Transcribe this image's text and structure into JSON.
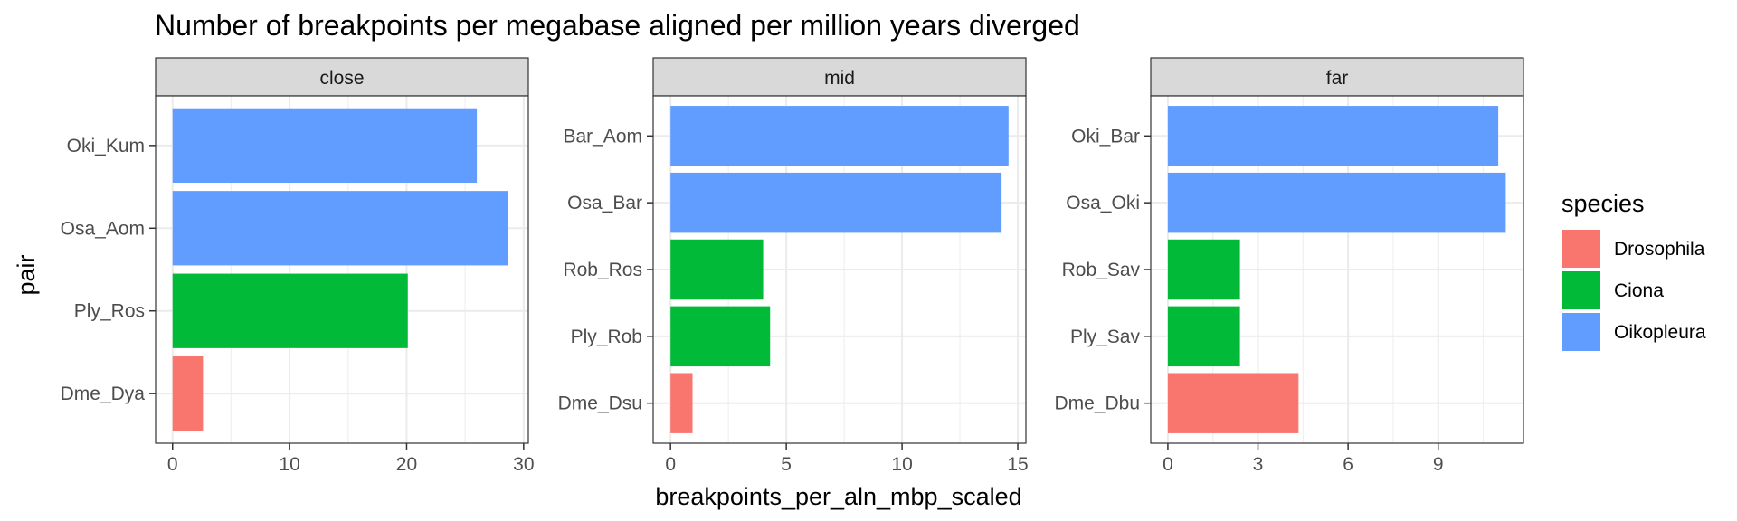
{
  "chart_data": {
    "type": "bar",
    "orientation": "horizontal",
    "title": "Number of breakpoints per megabase aligned per million years diverged",
    "xlabel": "breakpoints_per_aln_mbp_scaled",
    "ylabel": "pair",
    "facets": [
      {
        "name": "close",
        "xlim": [
          -1.45,
          30.4
        ],
        "xticks": [
          0,
          10,
          20,
          30
        ],
        "categories": [
          "Oki_Kum",
          "Osa_Aom",
          "Ply_Ros",
          "Dme_Dya"
        ],
        "values": [
          26.0,
          28.7,
          20.1,
          2.6
        ],
        "species": [
          "Oikopleura",
          "Oikopleura",
          "Ciona",
          "Drosophila"
        ]
      },
      {
        "name": "mid",
        "xlim": [
          -0.75,
          15.35
        ],
        "xticks": [
          0,
          5,
          10,
          15
        ],
        "categories": [
          "Bar_Aom",
          "Osa_Bar",
          "Rob_Ros",
          "Ply_Rob",
          "Dme_Dsu"
        ],
        "values": [
          14.6,
          14.3,
          4.0,
          4.3,
          0.95
        ],
        "species": [
          "Oikopleura",
          "Oikopleura",
          "Ciona",
          "Ciona",
          "Drosophila"
        ]
      },
      {
        "name": "far",
        "xlim": [
          -0.57,
          11.84
        ],
        "xticks": [
          0,
          3,
          6,
          9
        ],
        "xtick_labels": [
          "0",
          "3",
          "6",
          "9"
        ],
        "categories": [
          "Oki_Bar",
          "Osa_Oki",
          "Rob_Sav",
          "Ply_Sav",
          "Dme_Dbu"
        ],
        "values": [
          11.0,
          11.25,
          2.4,
          2.4,
          4.35
        ],
        "species": [
          "Oikopleura",
          "Oikopleura",
          "Ciona",
          "Ciona",
          "Drosophila"
        ]
      }
    ],
    "legend": {
      "title": "species",
      "position": "right",
      "entries": [
        {
          "label": "Drosophila",
          "color": "#F8766D"
        },
        {
          "label": "Ciona",
          "color": "#00BA38"
        },
        {
          "label": "Oikopleura",
          "color": "#619CFF"
        }
      ]
    },
    "grid": true,
    "theme": "bw"
  }
}
